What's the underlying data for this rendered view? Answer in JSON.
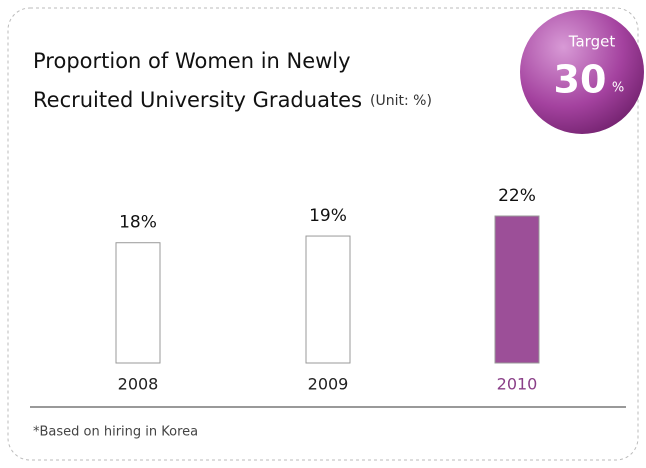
{
  "chart_data": {
    "type": "bar",
    "title": [
      "Proportion of Women in Newly",
      "Recruited University Graduates"
    ],
    "unit_note": "(Unit: %)",
    "target_label": "Target",
    "target_value": 30,
    "target_unit": "%",
    "categories": [
      "2008",
      "2009",
      "2010"
    ],
    "values": [
      18,
      19,
      22
    ],
    "value_labels": [
      "18%",
      "19%",
      "22%"
    ],
    "colors": [
      "#ffffff",
      "#ffffff",
      "#9c4f98"
    ],
    "label_colors": [
      "#222222",
      "#222222",
      "#8a3f88"
    ],
    "footnote": "*Based on hiring in Korea"
  }
}
